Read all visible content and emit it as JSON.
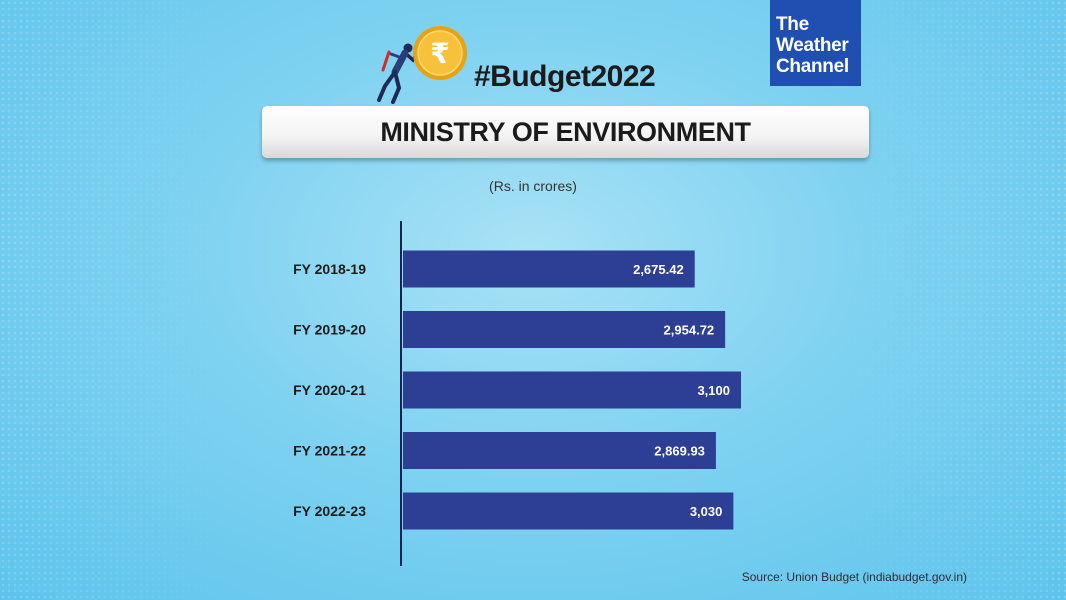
{
  "hashtag": "#Budget2022",
  "logo": {
    "line1": "The",
    "line2": "Weather",
    "line3": "Channel"
  },
  "title": "MINISTRY OF ENVIRONMENT",
  "unit_label": "(Rs. in crores)",
  "source": "Source: Union Budget (indiabudget.gov.in)",
  "icons": {
    "coin": "rupee-coin-icon",
    "figure": "businessman-pushing-icon"
  },
  "colors": {
    "bar": "#2d3f94",
    "logo_bg": "#1f4fb0",
    "coin": "#f5b21a",
    "background": "#7fd2f1"
  },
  "chart_data": {
    "type": "bar",
    "orientation": "horizontal",
    "title": "MINISTRY OF ENVIRONMENT",
    "unit": "(Rs. in crores)",
    "categories": [
      "FY 2018-19",
      "FY 2019-20",
      "FY 2020-21",
      "FY 2021-22",
      "FY 2022-23"
    ],
    "values": [
      2675.42,
      2954.72,
      3100,
      2869.93,
      3030
    ],
    "value_labels": [
      "2,675.42",
      "2,954.72",
      "3,100",
      "2,869.93",
      "3,030"
    ],
    "xlim": [
      0,
      3100
    ],
    "grid": false,
    "legend": "none"
  }
}
